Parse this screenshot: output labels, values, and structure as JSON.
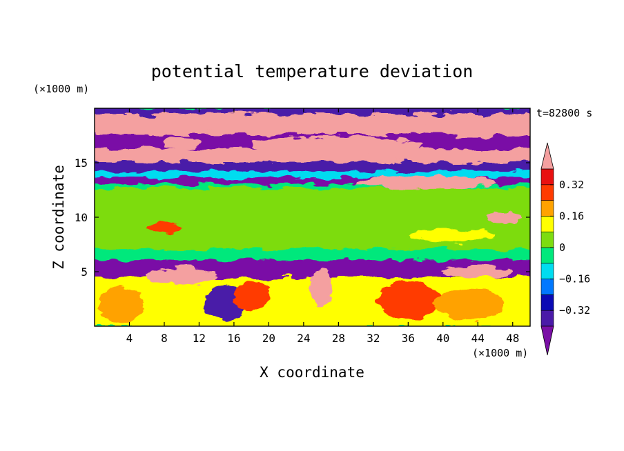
{
  "chart_data": {
    "type": "heatmap",
    "title": "potential temperature deviation",
    "xlabel": "X coordinate",
    "ylabel": "Z coordinate",
    "x_unit": "(×1000 m)",
    "y_unit": "(×1000 m)",
    "time_label": "t=82800 s",
    "xlim": [
      0,
      50
    ],
    "ylim": [
      0,
      20
    ],
    "x_ticks": [
      4,
      8,
      12,
      16,
      20,
      24,
      28,
      32,
      36,
      40,
      44,
      48
    ],
    "y_ticks": [
      5,
      10,
      15
    ],
    "colorbar": {
      "levels": [
        -0.4,
        -0.32,
        -0.24,
        -0.16,
        -0.08,
        0,
        0.08,
        0.16,
        0.24,
        0.32,
        0.4
      ],
      "tick_labels": [
        {
          "value": 0.32,
          "label": "0.32"
        },
        {
          "value": 0.16,
          "label": "0.16"
        },
        {
          "value": 0,
          "label": "0"
        },
        {
          "value": -0.16,
          "label": "−0.16"
        },
        {
          "value": -0.32,
          "label": "−0.32"
        }
      ],
      "colors": [
        "#7a0fa6",
        "#4a1aa8",
        "#0a0ab4",
        "#0078ff",
        "#00dcf0",
        "#00e87c",
        "#7ddc10",
        "#ffff00",
        "#ffa200",
        "#ff3a00",
        "#e81010",
        "#f4a0a0"
      ],
      "extend": "both"
    },
    "bands": [
      {
        "z": [
          19.4,
          20.0
        ],
        "value": -0.35
      },
      {
        "z": [
          17.5,
          19.4
        ],
        "value": 0.45
      },
      {
        "z": [
          16.2,
          17.5
        ],
        "value": -0.45
      },
      {
        "z": [
          15.0,
          16.2
        ],
        "value": 0.42
      },
      {
        "z": [
          14.2,
          15.0
        ],
        "value": -0.4
      },
      {
        "z": [
          13.6,
          14.2
        ],
        "value": -0.12
      },
      {
        "z": [
          13.0,
          13.6
        ],
        "value": -0.45
      },
      {
        "z": [
          12.6,
          13.0
        ],
        "value": -0.05
      },
      {
        "z": [
          7.0,
          12.6
        ],
        "value": 0.02
      },
      {
        "z": [
          6.0,
          7.0
        ],
        "value": -0.06
      },
      {
        "z": [
          5.3,
          6.0
        ],
        "value": -0.42
      },
      {
        "z": [
          4.4,
          5.3
        ],
        "value": -0.45
      },
      {
        "z": [
          0,
          4.4
        ],
        "value": 0.1
      }
    ],
    "blobs": [
      {
        "x": 14,
        "z": 18.8,
        "rx": 9,
        "rz": 0.8,
        "value": 0.45
      },
      {
        "x": 44,
        "z": 18.2,
        "rx": 6,
        "rz": 0.9,
        "value": 0.45
      },
      {
        "x": 28,
        "z": 16.6,
        "rx": 10,
        "rz": 0.8,
        "value": 0.45
      },
      {
        "x": 10,
        "z": 16.8,
        "rx": 2,
        "rz": 0.6,
        "value": 0.45
      },
      {
        "x": 41,
        "z": 15.6,
        "rx": 8,
        "rz": 0.6,
        "value": 0.45
      },
      {
        "x": 38,
        "z": 13.2,
        "rx": 8,
        "rz": 0.6,
        "value": 0.45
      },
      {
        "x": 10,
        "z": 4.6,
        "rx": 4,
        "rz": 0.8,
        "value": 0.45
      },
      {
        "x": 26,
        "z": 3.5,
        "rx": 1.2,
        "rz": 1.8,
        "value": 0.45
      },
      {
        "x": 44,
        "z": 5.0,
        "rx": 4,
        "rz": 0.6,
        "value": 0.45
      },
      {
        "x": 8,
        "z": 9.0,
        "rx": 2,
        "rz": 0.6,
        "value": 0.3
      },
      {
        "x": 47,
        "z": 10.0,
        "rx": 2,
        "rz": 0.6,
        "value": 0.45
      },
      {
        "x": 11,
        "z": 2.5,
        "rx": 3,
        "rz": 1.5,
        "value": 0.15
      },
      {
        "x": 15,
        "z": 2.2,
        "rx": 2.5,
        "rz": 1.6,
        "value": -0.35
      },
      {
        "x": 18,
        "z": 2.8,
        "rx": 2,
        "rz": 1.4,
        "value": 0.3
      },
      {
        "x": 36,
        "z": 2.4,
        "rx": 3.5,
        "rz": 1.8,
        "value": 0.28
      },
      {
        "x": 43,
        "z": 2.0,
        "rx": 4,
        "rz": 1.5,
        "value": 0.18
      },
      {
        "x": 30,
        "z": 1.5,
        "rx": 3,
        "rz": 1.2,
        "value": 0.12
      },
      {
        "x": 3,
        "z": 2.0,
        "rx": 2.5,
        "rz": 1.8,
        "value": 0.2
      },
      {
        "x": 46,
        "z": 12.0,
        "rx": 3,
        "rz": 0.8,
        "value": 0.02
      },
      {
        "x": 41,
        "z": 8.3,
        "rx": 5,
        "rz": 0.6,
        "value": 0.08
      }
    ]
  }
}
